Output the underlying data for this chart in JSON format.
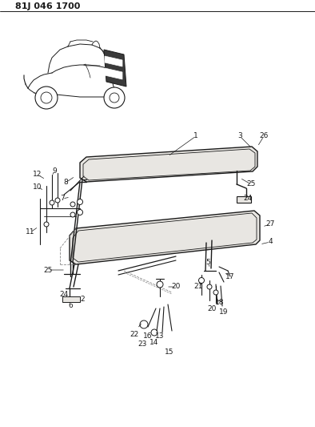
{
  "bg_color": "#ffffff",
  "line_color": "#1a1a1a",
  "fill_color": "#e8e6e2",
  "title_text": "81J 046 1700",
  "fig_width": 3.94,
  "fig_height": 5.33,
  "dpi": 100
}
